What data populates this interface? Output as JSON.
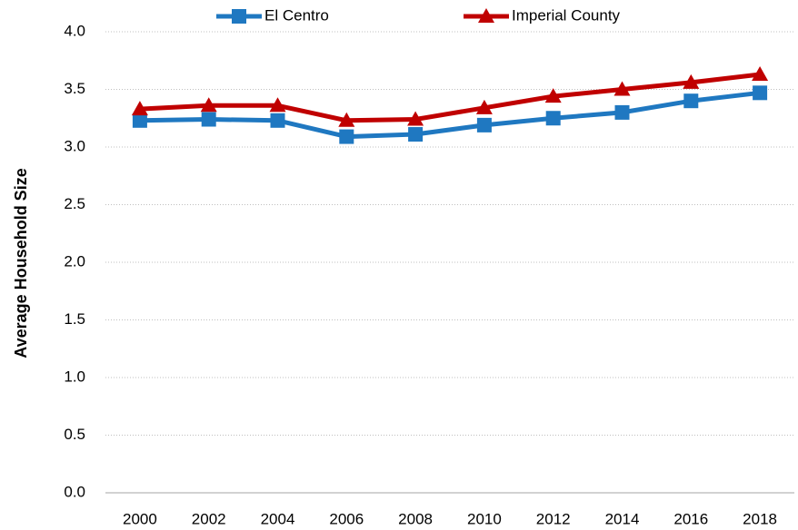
{
  "chart_data": {
    "type": "line",
    "y_label": "Average Household Size",
    "categories": [
      "2000",
      "2002",
      "2004",
      "2006",
      "2008",
      "2010",
      "2012",
      "2014",
      "2016",
      "2018"
    ],
    "series": [
      {
        "name": "El Centro",
        "color": "#1f78c1",
        "marker": "square",
        "values": [
          3.23,
          3.24,
          3.23,
          3.09,
          3.11,
          3.19,
          3.25,
          3.3,
          3.4,
          3.47
        ]
      },
      {
        "name": "Imperial County",
        "color": "#c00000",
        "marker": "triangle",
        "values": [
          3.33,
          3.36,
          3.36,
          3.23,
          3.24,
          3.34,
          3.44,
          3.5,
          3.56,
          3.63
        ]
      }
    ],
    "ylim": [
      0,
      4
    ],
    "yticks": [
      {
        "value": 0,
        "label": "0.0"
      },
      0.5,
      {
        "value": 1,
        "label": "1.0"
      },
      1.5,
      {
        "value": 2,
        "label": "2.0"
      },
      2.5,
      {
        "value": 3,
        "label": "3.0"
      },
      3.5,
      {
        "value": 4,
        "label": "4.0"
      }
    ],
    "grid": true,
    "legend": "top"
  }
}
